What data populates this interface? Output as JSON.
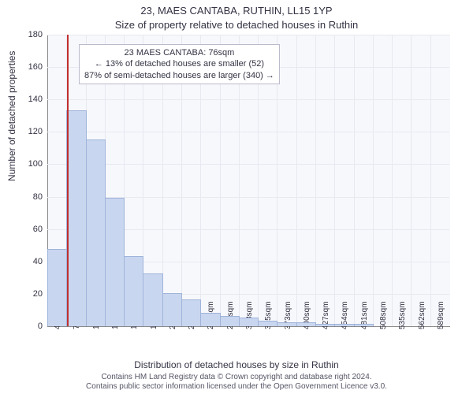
{
  "title_line1": "23, MAES CANTABA, RUTHIN, LL15 1YP",
  "title_line2": "Size of property relative to detached houses in Ruthin",
  "ylabel": "Number of detached properties",
  "xlabel": "Distribution of detached houses by size in Ruthin",
  "attribution_line1": "Contains HM Land Registry data © Crown copyright and database right 2024.",
  "attribution_line2": "Contains public sector information licensed under the Open Government Licence v3.0.",
  "chart": {
    "type": "histogram",
    "background_color": "#f7f8fc",
    "grid_color": "#e8e8f0",
    "axis_color": "#888888",
    "bar_fill": "#c9d6ef",
    "bar_stroke": "#9fb4da",
    "marker_color": "#c22f2f",
    "ylim": [
      0,
      180
    ],
    "ytick_step": 20,
    "yticks": [
      "0",
      "20",
      "40",
      "60",
      "80",
      "100",
      "120",
      "140",
      "160",
      "180"
    ],
    "xticks": [
      "48sqm",
      "75sqm",
      "102sqm",
      "129sqm",
      "156sqm",
      "183sqm",
      "210sqm",
      "237sqm",
      "264sqm",
      "291sqm",
      "318sqm",
      "345sqm",
      "373sqm",
      "400sqm",
      "427sqm",
      "454sqm",
      "481sqm",
      "508sqm",
      "535sqm",
      "562sqm",
      "589sqm"
    ],
    "xtick_step_sqm": 27,
    "x_start_sqm": 48,
    "values": [
      47,
      133,
      115,
      79,
      43,
      32,
      20,
      16,
      8,
      6,
      5,
      3,
      2,
      2,
      1,
      1,
      1,
      0,
      0,
      0,
      0
    ],
    "marker_x_sqm": 76,
    "tick_fontsize": 11,
    "label_fontsize": 12,
    "title_fontsize": 13
  },
  "annotation": {
    "line1": "23 MAES CANTABA: 76sqm",
    "line2": "← 13% of detached houses are smaller (52)",
    "line3": "87% of semi-detached houses are larger (340) →",
    "border_color": "#bbbbcc",
    "background": "#ffffff",
    "fontsize": 11
  }
}
